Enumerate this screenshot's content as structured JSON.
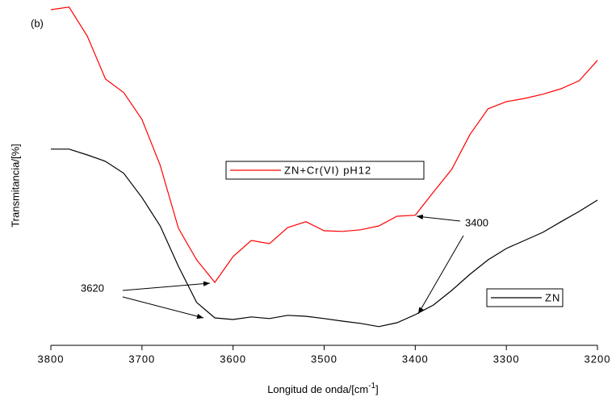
{
  "chart_data": {
    "type": "line",
    "panel_label": "(b)",
    "xlabel": {
      "text": "Longitud de onda/[cm",
      "sup": "-1",
      "after": "]"
    },
    "ylabel": "Transmitancia/[%]",
    "x": [
      3800,
      3780,
      3760,
      3740,
      3720,
      3700,
      3680,
      3660,
      3640,
      3620,
      3600,
      3580,
      3560,
      3540,
      3520,
      3500,
      3480,
      3460,
      3440,
      3420,
      3400,
      3380,
      3360,
      3340,
      3320,
      3300,
      3280,
      3260,
      3240,
      3220,
      3200
    ],
    "xlim": [
      3800,
      3200
    ],
    "xticks": [
      3800,
      3700,
      3600,
      3500,
      3400,
      3300,
      3200
    ],
    "ylim": [
      0,
      105
    ],
    "series": [
      {
        "name": "ZN+Cr(VI) pH12",
        "color": "#ff0000",
        "values": [
          104,
          104.8,
          95.8,
          82.5,
          78.3,
          70,
          55.8,
          36.3,
          26.5,
          19.5,
          27.5,
          32.5,
          31.5,
          36.5,
          38.3,
          35.5,
          35.3,
          35.8,
          37,
          40,
          40.3,
          47.5,
          54.5,
          65.3,
          73.3,
          75.5,
          76.5,
          77.8,
          79.5,
          82,
          88.3
        ]
      },
      {
        "name": "ZN",
        "color": "#000000",
        "values": [
          60.8,
          60.8,
          59,
          57,
          53.3,
          45.8,
          37,
          24.5,
          13.3,
          8.5,
          8,
          8.8,
          8.3,
          9.3,
          9,
          8.3,
          7.5,
          6.8,
          5.8,
          7,
          9.5,
          12.5,
          17,
          22,
          26.5,
          30,
          32.5,
          35,
          38.3,
          41.5,
          45
        ]
      }
    ],
    "annotations": [
      {
        "text": "3620"
      },
      {
        "text": "3400"
      }
    ]
  }
}
